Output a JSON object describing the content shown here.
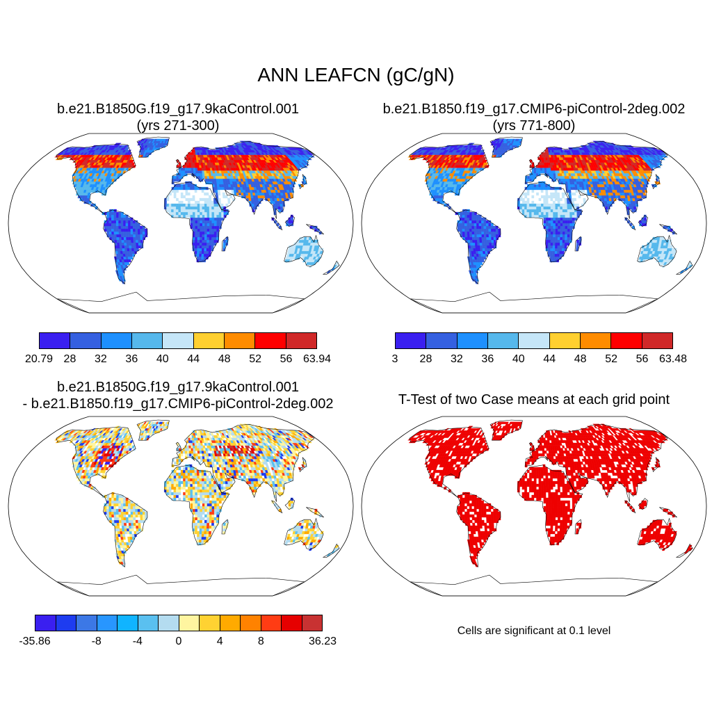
{
  "main_title": "ANN LEAFCN (gC/gN)",
  "panels": [
    {
      "title_line1": "b.e21.B1850G.f19_g17.9kaControl.001",
      "title_line2": "(yrs 271-300)",
      "colorbar": {
        "colors": [
          "#3a1ff0",
          "#3560e0",
          "#1e90ff",
          "#56b8ec",
          "#c5e6f8",
          "#ffd030",
          "#ff8c00",
          "#ff0000",
          "#d02828"
        ],
        "labels": [
          "20.79",
          "28",
          "32",
          "36",
          "40",
          "44",
          "48",
          "52",
          "56",
          "63.94"
        ]
      }
    },
    {
      "title_line1": "b.e21.B1850.f19_g17.CMIP6-piControl-2deg.002",
      "title_line2": "(yrs 771-800)",
      "colorbar": {
        "colors": [
          "#3a1ff0",
          "#3560e0",
          "#1e90ff",
          "#56b8ec",
          "#c5e6f8",
          "#ffd030",
          "#ff8c00",
          "#ff0000",
          "#d02828"
        ],
        "labels": [
          "3",
          "28",
          "32",
          "36",
          "40",
          "44",
          "48",
          "52",
          "56",
          "63.48"
        ]
      }
    },
    {
      "title_line1": "b.e21.B1850G.f19_g17.9kaControl.001",
      "title_line2": "- b.e21.B1850.f19_g17.CMIP6-piControl-2deg.002",
      "colorbar": {
        "colors": [
          "#3a1ff0",
          "#1e3cf0",
          "#3c78e6",
          "#2896ff",
          "#10b4ff",
          "#5ac0f0",
          "#b4dcf0",
          "#fff5a0",
          "#ffd232",
          "#ffaa00",
          "#ff8200",
          "#ff3c14",
          "#e60000",
          "#c83232"
        ],
        "labels": [
          "-35.86",
          "-8",
          "-4",
          "0",
          "4",
          "8",
          "36.23"
        ],
        "label_positions": [
          0,
          3,
          5,
          7,
          9,
          11,
          14
        ]
      }
    },
    {
      "title_line1": "T-Test of two Case means at each grid point",
      "note": "Cells are significant at 0.1 level",
      "color": "#ee0000"
    }
  ]
}
